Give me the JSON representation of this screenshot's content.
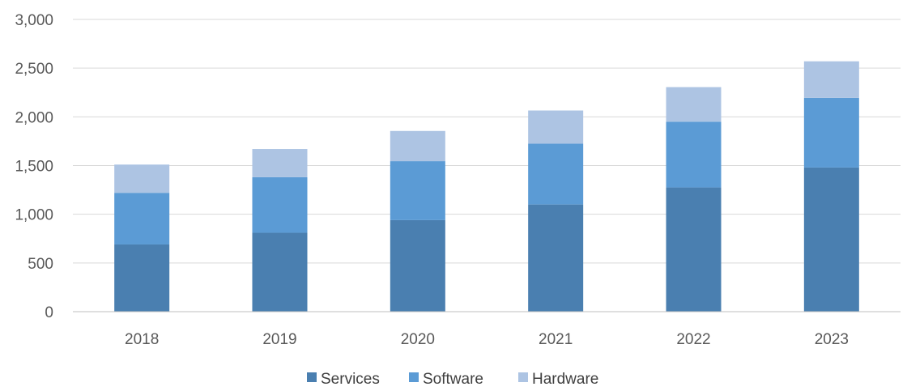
{
  "chart_data": {
    "type": "bar",
    "stacked": true,
    "categories": [
      "2018",
      "2019",
      "2020",
      "2021",
      "2022",
      "2023"
    ],
    "series": [
      {
        "name": "Services",
        "color": "#4a7fb0",
        "values": [
          690,
          810,
          940,
          1100,
          1275,
          1480
        ]
      },
      {
        "name": "Software",
        "color": "#5b9bd5",
        "values": [
          530,
          570,
          605,
          625,
          675,
          715
        ]
      },
      {
        "name": "Hardware",
        "color": "#adc4e3",
        "values": [
          290,
          290,
          310,
          340,
          355,
          375
        ]
      }
    ],
    "ylim": [
      0,
      3000
    ],
    "yticks": [
      "0",
      "500",
      "1,000",
      "1,500",
      "2,000",
      "2,500",
      "3,000"
    ],
    "grid": true,
    "legend_position": "bottom"
  }
}
